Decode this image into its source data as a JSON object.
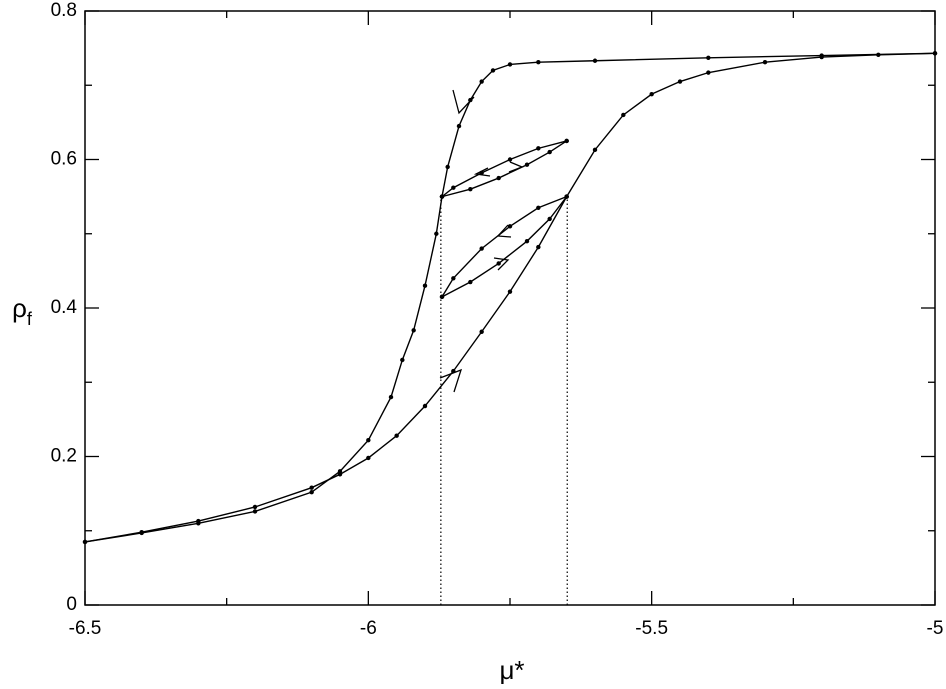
{
  "chart_data": {
    "type": "line",
    "xlabel": "μ*",
    "ylabel": "ρ",
    "ylabel_sub": "f",
    "xlim": [
      -6.5,
      -5
    ],
    "ylim": [
      0,
      0.8
    ],
    "xticks": [
      -6.5,
      -6,
      -5.5,
      -5
    ],
    "yticks": [
      0,
      0.2,
      0.4,
      0.6,
      0.8
    ],
    "xminorticks": [
      -6.25,
      -5.75,
      -5.25
    ],
    "yminorticks": [
      0.1,
      0.3,
      0.5,
      0.7
    ],
    "vlines": [
      -5.872,
      -5.649
    ],
    "series": [
      {
        "color": "#000000",
        "x": [
          -6.5,
          -6.4,
          -6.3,
          -6.2,
          -6.1,
          -6.05,
          -6.0,
          -5.95,
          -5.9,
          -5.85,
          -5.8,
          -5.75,
          -5.7,
          -5.65,
          -5.6,
          -5.55,
          -5.5,
          -5.45,
          -5.4,
          -5.3,
          -5.2,
          -5.1,
          -5.0
        ],
        "values": [
          0.085,
          0.098,
          0.113,
          0.132,
          0.158,
          0.176,
          0.198,
          0.228,
          0.268,
          0.315,
          0.368,
          0.422,
          0.482,
          0.55,
          0.613,
          0.66,
          0.688,
          0.705,
          0.717,
          0.731,
          0.738,
          0.741,
          0.743
        ]
      },
      {
        "color": "#000000",
        "x": [
          -5.0,
          -5.2,
          -5.4,
          -5.6,
          -5.7,
          -5.75,
          -5.78,
          -5.8,
          -5.82,
          -5.84,
          -5.86,
          -5.87,
          -5.88,
          -5.9,
          -5.92,
          -5.94,
          -5.96,
          -6.0,
          -6.05,
          -6.1,
          -6.2,
          -6.3,
          -6.4,
          -6.5
        ],
        "values": [
          0.743,
          0.74,
          0.737,
          0.733,
          0.731,
          0.728,
          0.72,
          0.705,
          0.68,
          0.645,
          0.59,
          0.55,
          0.5,
          0.43,
          0.37,
          0.33,
          0.28,
          0.222,
          0.18,
          0.152,
          0.126,
          0.11,
          0.097,
          0.085
        ]
      },
      {
        "color": "#000000",
        "x": [
          -5.87,
          -5.82,
          -5.77,
          -5.72,
          -5.68,
          -5.65
        ],
        "values": [
          0.55,
          0.56,
          0.575,
          0.593,
          0.61,
          0.625
        ]
      },
      {
        "color": "#000000",
        "x": [
          -5.65,
          -5.7,
          -5.75,
          -5.8,
          -5.85,
          -5.87
        ],
        "values": [
          0.625,
          0.615,
          0.6,
          0.582,
          0.562,
          0.55
        ]
      },
      {
        "color": "#000000",
        "x": [
          -5.87,
          -5.82,
          -5.77,
          -5.72,
          -5.68,
          -5.65
        ],
        "values": [
          0.415,
          0.435,
          0.46,
          0.49,
          0.52,
          0.55
        ]
      },
      {
        "color": "#000000",
        "x": [
          -5.65,
          -5.7,
          -5.75,
          -5.8,
          -5.85,
          -5.87
        ],
        "values": [
          0.55,
          0.535,
          0.51,
          0.48,
          0.44,
          0.415
        ]
      }
    ]
  }
}
